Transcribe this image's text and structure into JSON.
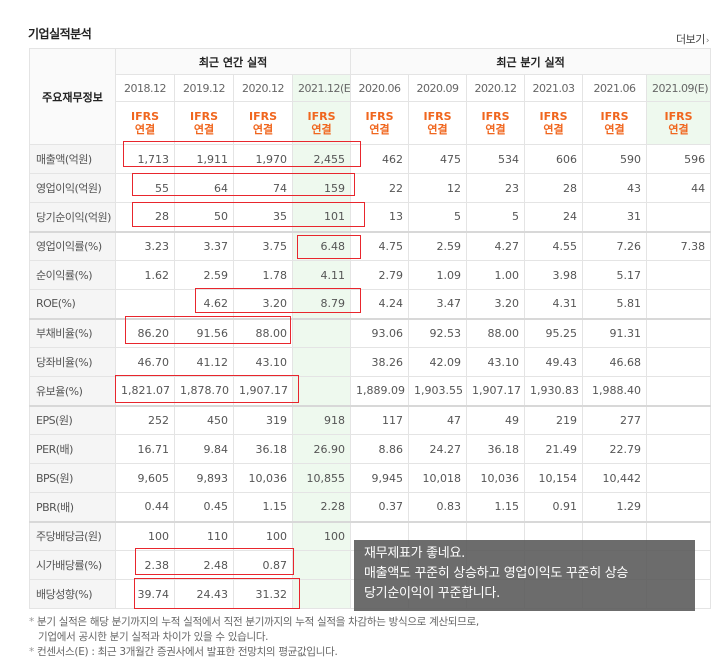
{
  "header": {
    "title": "기업실적분석",
    "more_label": "더보기"
  },
  "table": {
    "corner_label": "주요재무정보",
    "annual_group": "최근 연간 실적",
    "quarter_group": "최근 분기 실적",
    "annual_periods": [
      "2018.12",
      "2019.12",
      "2020.12",
      "2021.12(E)"
    ],
    "quarter_periods": [
      "2020.06",
      "2020.09",
      "2020.12",
      "2021.03",
      "2021.06",
      "2021.09(E)"
    ],
    "basis_line1": "IFRS",
    "basis_line2": "연결",
    "rows": [
      {
        "label": "매출액(억원)",
        "values": [
          "1,713",
          "1,911",
          "1,970",
          "2,455",
          "462",
          "475",
          "534",
          "606",
          "590",
          "596"
        ]
      },
      {
        "label": "영업이익(억원)",
        "values": [
          "55",
          "64",
          "74",
          "159",
          "22",
          "12",
          "23",
          "28",
          "43",
          "44"
        ]
      },
      {
        "label": "당기순이익(억원)",
        "values": [
          "28",
          "50",
          "35",
          "101",
          "13",
          "5",
          "5",
          "24",
          "31",
          ""
        ]
      },
      {
        "label": "영업이익률(%)",
        "values": [
          "3.23",
          "3.37",
          "3.75",
          "6.48",
          "4.75",
          "2.59",
          "4.27",
          "4.55",
          "7.26",
          "7.38"
        ]
      },
      {
        "label": "순이익률(%)",
        "values": [
          "1.62",
          "2.59",
          "1.78",
          "4.11",
          "2.79",
          "1.09",
          "1.00",
          "3.98",
          "5.17",
          ""
        ]
      },
      {
        "label": "ROE(%)",
        "values": [
          "",
          "4.62",
          "3.20",
          "8.79",
          "4.24",
          "3.47",
          "3.20",
          "4.31",
          "5.81",
          ""
        ]
      },
      {
        "label": "부채비율(%)",
        "values": [
          "86.20",
          "91.56",
          "88.00",
          "",
          "93.06",
          "92.53",
          "88.00",
          "95.25",
          "91.31",
          ""
        ]
      },
      {
        "label": "당좌비율(%)",
        "values": [
          "46.70",
          "41.12",
          "43.10",
          "",
          "38.26",
          "42.09",
          "43.10",
          "49.43",
          "46.68",
          ""
        ]
      },
      {
        "label": "유보율(%)",
        "values": [
          "1,821.07",
          "1,878.70",
          "1,907.17",
          "",
          "1,889.09",
          "1,903.55",
          "1,907.17",
          "1,930.83",
          "1,988.40",
          ""
        ]
      },
      {
        "label": "EPS(원)",
        "values": [
          "252",
          "450",
          "319",
          "918",
          "117",
          "47",
          "49",
          "219",
          "277",
          ""
        ]
      },
      {
        "label": "PER(배)",
        "values": [
          "16.71",
          "9.84",
          "36.18",
          "26.90",
          "8.86",
          "24.27",
          "36.18",
          "21.49",
          "22.79",
          ""
        ]
      },
      {
        "label": "BPS(원)",
        "values": [
          "9,605",
          "9,893",
          "10,036",
          "10,855",
          "9,945",
          "10,018",
          "10,036",
          "10,154",
          "10,442",
          ""
        ]
      },
      {
        "label": "PBR(배)",
        "values": [
          "0.44",
          "0.45",
          "1.15",
          "2.28",
          "0.37",
          "0.83",
          "1.15",
          "0.91",
          "1.29",
          ""
        ]
      },
      {
        "label": "주당배당금(원)",
        "values": [
          "100",
          "110",
          "100",
          "100",
          "",
          "",
          "",
          "",
          "",
          ""
        ]
      },
      {
        "label": "시가배당률(%)",
        "values": [
          "2.38",
          "2.48",
          "0.87",
          "",
          "",
          "",
          "",
          "",
          "",
          ""
        ]
      },
      {
        "label": "배당성향(%)",
        "values": [
          "39.74",
          "24.43",
          "31.32",
          "",
          "",
          "",
          "",
          "",
          "",
          ""
        ]
      }
    ]
  },
  "overlay": {
    "line1": "재무제표가 좋네요.",
    "line2": "매출액도 꾸준히 상승하고 영업이익도 꾸준히 상승",
    "line3": "당기순이익이 꾸준합니다."
  },
  "notes": {
    "note1a": "분기 실적은 해당 분기까지의 누적 실적에서 직전 분기까지의 누적 실적을 차감하는 방식으로 계산되므로,",
    "note1b": "기업에서 공시한 분기 실적과 차이가 있을 수 있습니다.",
    "note2": "컨센서스(E) : 최근 3개월간 증권사에서 발표한 전망치의 평균값입니다."
  },
  "colors": {
    "accent_orange": "#f0661e",
    "estimate_bg": "#eef9ee",
    "highlight_red": "#e8262d",
    "estimate_green": "#2a9a3c"
  }
}
